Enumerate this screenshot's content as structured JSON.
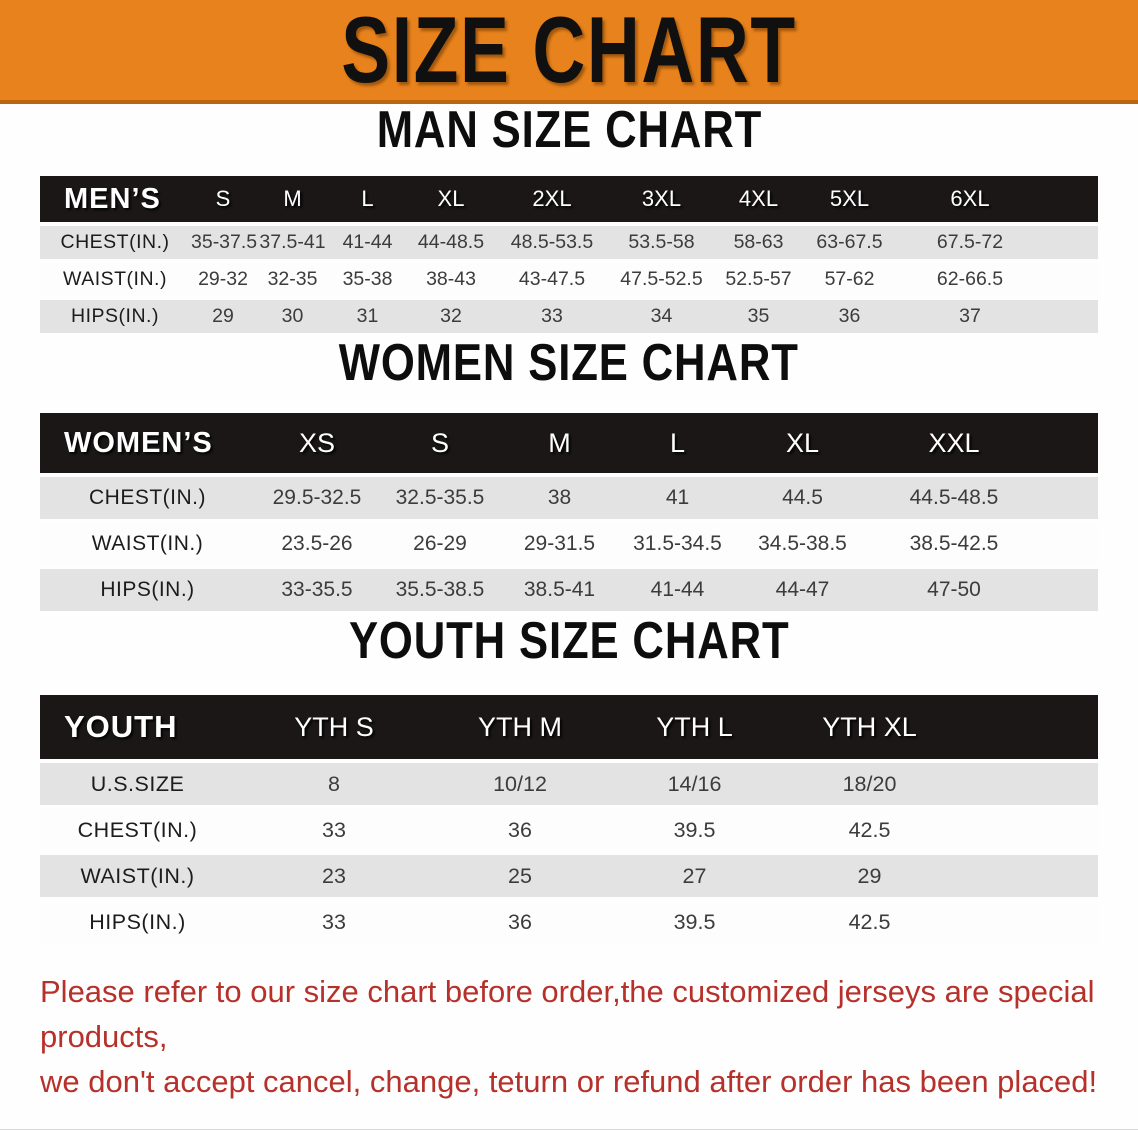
{
  "banner": {
    "title": "SIZE CHART",
    "background_color": "#E8821C",
    "text_color": "#101010"
  },
  "colors": {
    "table_header_bg": "#1B1717",
    "row_gray": "#E3E3E4",
    "row_white": "#FDFDFD",
    "footnote_red": "#B7312B"
  },
  "sections": [
    {
      "heading": "MAN SIZE CHART",
      "table": {
        "group_label": "MEN’S",
        "columns": [
          "S",
          "M",
          "L",
          "XL",
          "2XL",
          "3XL",
          "4XL",
          "5XL",
          "6XL"
        ],
        "rows": [
          {
            "label": "CHEST(IN.)",
            "values": [
              "35-37.5",
              "37.5-41",
              "41-44",
              "44-48.5",
              "48.5-53.5",
              "53.5-58",
              "58-63",
              "63-67.5",
              "67.5-72"
            ]
          },
          {
            "label": "WAIST(IN.)",
            "values": [
              "29-32",
              "32-35",
              "35-38",
              "38-43",
              "43-47.5",
              "47.5-52.5",
              "52.5-57",
              "57-62",
              "62-66.5"
            ]
          },
          {
            "label": "HIPS(IN.)",
            "values": [
              "29",
              "30",
              "31",
              "32",
              "33",
              "34",
              "35",
              "36",
              "37"
            ]
          }
        ]
      }
    },
    {
      "heading": "WOMEN SIZE CHART",
      "table": {
        "group_label": "WOMEN’S",
        "columns": [
          "XS",
          "S",
          "M",
          "L",
          "XL",
          "XXL"
        ],
        "rows": [
          {
            "label": "CHEST(IN.)",
            "values": [
              "29.5-32.5",
              "32.5-35.5",
              "38",
              "41",
              "44.5",
              "44.5-48.5"
            ]
          },
          {
            "label": "WAIST(IN.)",
            "values": [
              "23.5-26",
              "26-29",
              "29-31.5",
              "31.5-34.5",
              "34.5-38.5",
              "38.5-42.5"
            ]
          },
          {
            "label": "HIPS(IN.)",
            "values": [
              "33-35.5",
              "35.5-38.5",
              "38.5-41",
              "41-44",
              "44-47",
              "47-50"
            ]
          }
        ]
      }
    },
    {
      "heading": "YOUTH SIZE CHART",
      "table": {
        "group_label": "YOUTH",
        "columns": [
          "YTH S",
          "YTH M",
          "YTH L",
          "YTH XL"
        ],
        "rows": [
          {
            "label": "U.S.SIZE",
            "values": [
              "8",
              "10/12",
              "14/16",
              "18/20"
            ]
          },
          {
            "label": "CHEST(IN.)",
            "values": [
              "33",
              "36",
              "39.5",
              "42.5"
            ]
          },
          {
            "label": "WAIST(IN.)",
            "values": [
              "23",
              "25",
              "27",
              "29"
            ]
          },
          {
            "label": "HIPS(IN.)",
            "values": [
              "33",
              "36",
              "39.5",
              "42.5"
            ]
          }
        ]
      }
    }
  ],
  "footnote": {
    "line1": "Please refer to our size chart before order,the customized jerseys are special products,",
    "line2": "we don't accept cancel, change, teturn or refund after order has been placed!"
  }
}
